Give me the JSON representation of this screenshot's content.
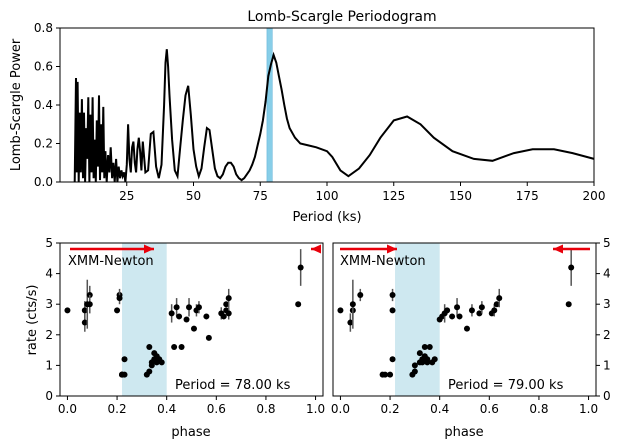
{
  "chart_data": [
    {
      "type": "line",
      "title": "Lomb-Scargle Periodogram",
      "xlabel": "Period (ks)",
      "ylabel": "Lomb-Scargle Power",
      "xlim": [
        0,
        200
      ],
      "ylim": [
        0,
        0.8
      ],
      "xticks": [
        25,
        50,
        75,
        100,
        125,
        150,
        175,
        200
      ],
      "xtick_labels": [
        "25",
        "50",
        "75",
        "100",
        "125",
        "150",
        "175",
        "200"
      ],
      "yticks": [
        0,
        0.2,
        0.4,
        0.6,
        0.8
      ],
      "ytick_labels": [
        "0.0",
        "0.2",
        "0.4",
        "0.6",
        "0.8"
      ],
      "highlight_band": [
        77.5,
        79.5
      ],
      "highlight_color": "#87cee8",
      "line_color": "#000000",
      "series": [
        {
          "x": [
            5.5,
            6.0,
            6.3,
            6.6,
            7.0,
            7.4,
            7.8,
            8.2,
            8.6,
            9.0,
            9.4,
            9.8,
            10.2,
            10.6,
            11.0,
            11.4,
            11.8,
            12.2,
            12.6,
            13.0,
            13.4,
            13.8,
            14.2,
            14.6,
            15.0,
            15.4,
            15.8,
            16.2,
            16.6,
            17.0,
            17.5,
            18.0,
            18.5,
            19.0,
            19.5,
            20.0,
            20.5,
            21.0,
            21.5,
            22.0,
            22.5,
            23.0,
            23.5,
            24.0,
            24.5,
            25.0,
            25.5,
            26.0,
            26.5,
            27.0,
            27.5,
            28.0,
            28.5,
            29.0,
            29.5,
            30.0,
            30.5,
            31.0,
            31.5,
            32.0,
            33.0,
            34.0,
            35.0,
            36.0,
            37.0,
            38.0,
            39.0,
            39.5,
            40.0,
            40.5,
            41.0,
            42.0,
            43.0,
            44.0,
            45.0,
            46.0,
            47.0,
            48.0,
            49.0,
            50.0,
            51.0,
            52.0,
            53.0,
            54.0,
            55.0,
            56.0,
            57.0,
            58.0,
            59.0,
            60.0,
            61.0,
            62.0,
            63.0,
            64.0,
            65.0,
            66.0,
            67.0,
            68.0,
            69.0,
            70.0,
            71.0,
            72.0,
            73.0,
            74.0,
            75.0,
            76.0,
            77.0,
            78.0,
            79.0,
            80.0,
            81.0,
            82.0,
            83.0,
            84.0,
            85.0,
            86.0,
            88.0,
            90.0,
            93.0,
            96.0,
            100.0,
            102.0,
            105.0,
            108.0,
            112.0,
            116.0,
            120.0,
            125.0,
            130.0,
            135.0,
            140.0,
            147.0,
            155.0,
            162.0,
            170.0,
            177.0,
            185.0,
            192.0,
            200.0
          ],
          "y": [
            0.0,
            0.54,
            0.05,
            0.52,
            0.0,
            0.36,
            0.05,
            0.43,
            0.02,
            0.36,
            0.0,
            0.28,
            0.12,
            0.44,
            0.0,
            0.35,
            0.05,
            0.44,
            0.02,
            0.22,
            0.0,
            0.32,
            0.08,
            0.45,
            0.01,
            0.3,
            0.05,
            0.39,
            0.02,
            0.16,
            0.0,
            0.14,
            0.05,
            0.18,
            0.02,
            0.1,
            0.0,
            0.12,
            0.0,
            0.08,
            0.02,
            0.06,
            0.03,
            0.05,
            0.0,
            0.09,
            0.3,
            0.12,
            0.05,
            0.18,
            0.21,
            0.1,
            0.05,
            0.17,
            0.23,
            0.16,
            0.06,
            0.21,
            0.13,
            0.05,
            0.06,
            0.25,
            0.26,
            0.08,
            0.02,
            0.09,
            0.4,
            0.62,
            0.69,
            0.6,
            0.45,
            0.22,
            0.06,
            0.03,
            0.18,
            0.32,
            0.45,
            0.5,
            0.35,
            0.17,
            0.08,
            0.03,
            0.07,
            0.18,
            0.28,
            0.27,
            0.17,
            0.07,
            0.03,
            0.02,
            0.04,
            0.08,
            0.1,
            0.1,
            0.08,
            0.04,
            0.02,
            0.01,
            0.02,
            0.04,
            0.06,
            0.09,
            0.13,
            0.19,
            0.25,
            0.32,
            0.42,
            0.55,
            0.61,
            0.66,
            0.62,
            0.55,
            0.48,
            0.4,
            0.33,
            0.28,
            0.23,
            0.2,
            0.19,
            0.18,
            0.16,
            0.13,
            0.06,
            0.03,
            0.07,
            0.14,
            0.23,
            0.32,
            0.34,
            0.3,
            0.23,
            0.16,
            0.12,
            0.11,
            0.15,
            0.17,
            0.17,
            0.15,
            0.12
          ]
        }
      ]
    },
    {
      "type": "scatter",
      "xlabel": "phase",
      "ylabel": "rate (cts/s)",
      "xlim": [
        -0.03,
        1.03
      ],
      "ylim": [
        0,
        5
      ],
      "xticks": [
        0.0,
        0.2,
        0.4,
        0.6,
        0.8,
        1.0
      ],
      "xtick_labels": [
        "0.0",
        "0.2",
        "0.4",
        "0.6",
        "0.8",
        "1.0"
      ],
      "yticks": [
        0,
        1,
        2,
        3,
        4,
        5
      ],
      "ytick_labels": [
        "0",
        "1",
        "2",
        "3",
        "4",
        "5"
      ],
      "band": [
        0.22,
        0.4
      ],
      "annotation": "Period = 78.00 ks",
      "instrument_label": "XMM-Newton",
      "label_color": "#e8000b",
      "x": [
        0.0,
        0.07,
        0.07,
        0.08,
        0.09,
        0.09,
        0.2,
        0.21,
        0.21,
        0.22,
        0.22,
        0.22,
        0.23,
        0.23,
        0.32,
        0.33,
        0.33,
        0.34,
        0.34,
        0.35,
        0.35,
        0.36,
        0.36,
        0.37,
        0.38,
        0.42,
        0.43,
        0.44,
        0.45,
        0.46,
        0.48,
        0.49,
        0.51,
        0.52,
        0.53,
        0.56,
        0.57,
        0.62,
        0.63,
        0.64,
        0.64,
        0.65,
        0.65,
        0.93,
        0.94
      ],
      "y": [
        2.8,
        2.4,
        2.8,
        3.0,
        3.3,
        3.0,
        2.8,
        3.3,
        3.2,
        0.7,
        0.7,
        0.7,
        0.7,
        1.2,
        0.7,
        0.8,
        1.6,
        1.0,
        1.1,
        1.2,
        1.4,
        1.1,
        1.3,
        1.2,
        1.1,
        2.7,
        1.6,
        2.9,
        2.6,
        1.6,
        2.5,
        2.9,
        2.2,
        2.8,
        2.9,
        2.6,
        1.9,
        2.7,
        2.6,
        2.8,
        3.0,
        2.7,
        3.2,
        3.0,
        4.2
      ],
      "err": [
        0,
        0.3,
        0.3,
        0.8,
        0.3,
        0.3,
        0,
        0.2,
        0.2,
        0,
        0,
        0,
        0,
        0,
        0,
        0,
        0,
        0,
        0,
        0,
        0,
        0,
        0,
        0,
        0,
        0.3,
        0,
        0.3,
        0,
        0,
        0,
        0.3,
        0,
        0.2,
        0.2,
        0,
        0,
        0.2,
        0,
        0,
        0,
        0.2,
        0.3,
        0,
        0.6
      ]
    },
    {
      "type": "scatter",
      "xlabel": "phase",
      "xlim": [
        -0.03,
        1.03
      ],
      "ylim": [
        0,
        5
      ],
      "xticks": [
        0.0,
        0.2,
        0.4,
        0.6,
        0.8,
        1.0
      ],
      "xtick_labels": [
        "0.0",
        "0.2",
        "0.4",
        "0.6",
        "0.8",
        "1.0"
      ],
      "yticks": [
        0,
        1,
        2,
        3,
        4,
        5
      ],
      "ytick_labels": [
        "0",
        "1",
        "2",
        "3",
        "4",
        "5"
      ],
      "band": [
        0.22,
        0.4
      ],
      "annotation": "Period = 79.00 ks",
      "instrument_label": "XMM-Newton",
      "label_color": "#e8000b",
      "x": [
        0.0,
        0.04,
        0.05,
        0.05,
        0.08,
        0.17,
        0.18,
        0.2,
        0.21,
        0.21,
        0.21,
        0.29,
        0.3,
        0.3,
        0.32,
        0.32,
        0.33,
        0.33,
        0.34,
        0.34,
        0.35,
        0.35,
        0.36,
        0.37,
        0.38,
        0.4,
        0.41,
        0.42,
        0.43,
        0.45,
        0.47,
        0.48,
        0.51,
        0.53,
        0.56,
        0.57,
        0.61,
        0.62,
        0.63,
        0.64,
        0.92,
        0.93
      ],
      "y": [
        2.8,
        2.4,
        2.8,
        3.0,
        3.3,
        0.7,
        0.7,
        0.7,
        1.2,
        2.8,
        3.3,
        0.7,
        0.8,
        1.0,
        1.1,
        1.4,
        1.1,
        1.2,
        1.6,
        1.3,
        1.2,
        1.1,
        1.6,
        1.1,
        1.2,
        2.5,
        2.6,
        2.7,
        2.8,
        2.6,
        2.9,
        2.6,
        2.2,
        2.8,
        2.7,
        2.9,
        2.7,
        2.8,
        3.0,
        3.2,
        3.0,
        4.2
      ],
      "err": [
        0,
        0.3,
        0.3,
        0.8,
        0.2,
        0,
        0,
        0,
        0,
        0,
        0.2,
        0,
        0,
        0,
        0,
        0,
        0,
        0,
        0,
        0,
        0,
        0,
        0,
        0,
        0,
        0,
        0,
        0.3,
        0,
        0,
        0.3,
        0,
        0,
        0.2,
        0,
        0.2,
        0,
        0.2,
        0,
        0.3,
        0,
        0.6
      ]
    }
  ]
}
